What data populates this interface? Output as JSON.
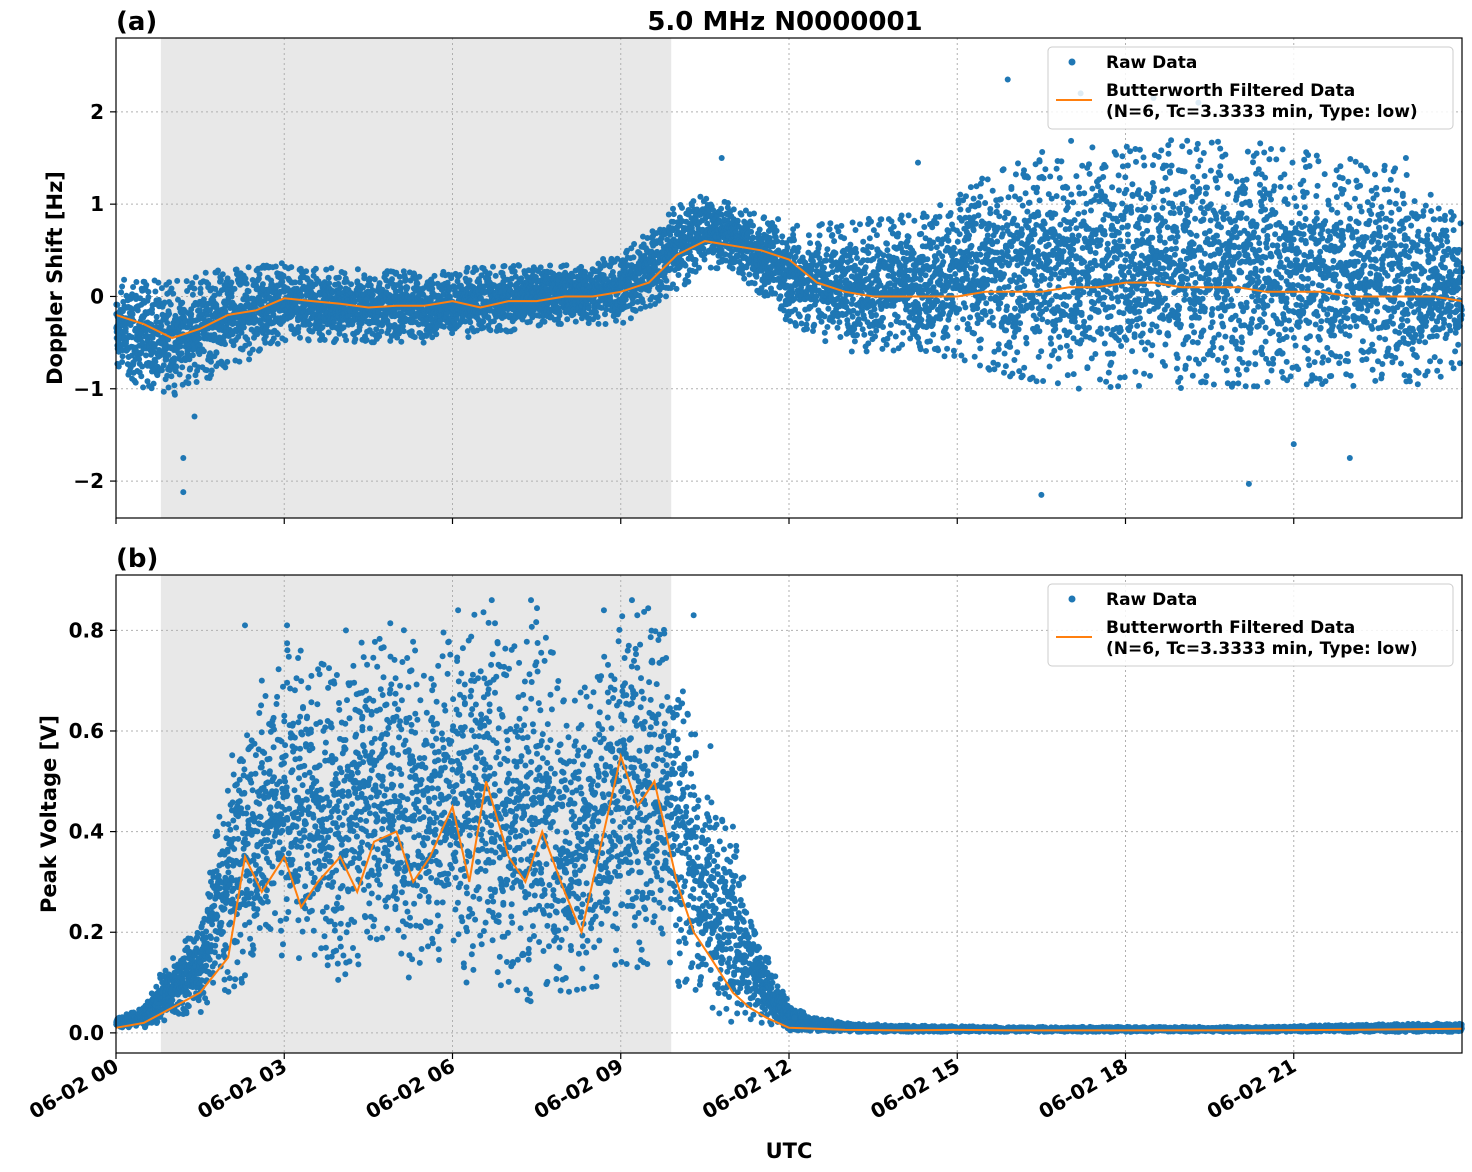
{
  "figure": {
    "title": "5.0 MHz N0000001",
    "xlabel": "UTC",
    "x_tick_labels": [
      "06-02 00",
      "06-02 03",
      "06-02 06",
      "06-02 09",
      "06-02 12",
      "06-02 15",
      "06-02 18",
      "06-02 21"
    ],
    "shaded_interval_hours": [
      0.8,
      9.9
    ],
    "colors": {
      "raw": "#1f77b4",
      "filtered": "#ff7f0e",
      "shade": "#e8e8e8"
    }
  },
  "chart_data": [
    {
      "type": "scatter",
      "panel_label": "(a)",
      "xlabel": "UTC",
      "ylabel": "Doppler Shift [Hz]",
      "xlim_hours": [
        0,
        24
      ],
      "ylim": [
        -2.4,
        2.8
      ],
      "y_ticks": [
        -2,
        -1,
        0,
        1,
        2
      ],
      "y_tick_labels": [
        "−2",
        "−1",
        "0",
        "1",
        "2"
      ],
      "grid": true,
      "legend_position": "top-right",
      "legend": {
        "raw": "Raw Data",
        "filtered_line1": "Butterworth Filtered Data",
        "filtered_line2": "(N=6, Tc=3.3333 min, Type: low)"
      },
      "series": [
        {
          "name": "Raw Data",
          "kind": "scatter",
          "envelope_x_hours": [
            0,
            1,
            2,
            3,
            4,
            5,
            6,
            7,
            8,
            9,
            9.9,
            10.5,
            11,
            12,
            13,
            14,
            15,
            16,
            17,
            18,
            19,
            20,
            21,
            22,
            23,
            24
          ],
          "envelope_low": [
            -0.9,
            -1.1,
            -0.8,
            -0.5,
            -0.5,
            -0.5,
            -0.5,
            -0.4,
            -0.3,
            -0.3,
            0.0,
            0.3,
            0.3,
            -0.3,
            -0.6,
            -0.6,
            -0.7,
            -0.9,
            -1.0,
            -1.0,
            -1.0,
            -1.0,
            -1.1,
            -1.0,
            -1.0,
            -0.8
          ],
          "envelope_high": [
            0.2,
            0.2,
            0.3,
            0.4,
            0.3,
            0.3,
            0.3,
            0.35,
            0.35,
            0.45,
            1.0,
            1.1,
            1.0,
            0.8,
            0.8,
            0.9,
            1.1,
            1.5,
            1.7,
            1.7,
            1.7,
            1.7,
            1.6,
            1.5,
            1.4,
            0.8
          ],
          "outliers": [
            [
              1.2,
              -2.12
            ],
            [
              1.2,
              -1.75
            ],
            [
              1.4,
              -1.3
            ],
            [
              10.8,
              1.5
            ],
            [
              14.3,
              1.45
            ],
            [
              15.9,
              2.35
            ],
            [
              16.5,
              -2.15
            ],
            [
              17.2,
              2.2
            ],
            [
              18.5,
              2.15
            ],
            [
              19.3,
              2.1
            ],
            [
              20.2,
              -2.03
            ],
            [
              21.0,
              -1.6
            ],
            [
              22.0,
              -1.75
            ],
            [
              23.0,
              1.5
            ]
          ]
        },
        {
          "name": "Butterworth Filtered Data (N=6, Tc=3.3333 min, Type: low)",
          "kind": "line",
          "x_hours": [
            0,
            0.5,
            1.0,
            1.5,
            2.0,
            2.5,
            3.0,
            3.5,
            4.0,
            4.5,
            5.0,
            5.5,
            6.0,
            6.5,
            7.0,
            7.5,
            8.0,
            8.5,
            9.0,
            9.5,
            10.0,
            10.5,
            11.0,
            11.5,
            12.0,
            12.5,
            13.0,
            13.5,
            14.0,
            14.5,
            15.0,
            15.5,
            16.0,
            16.5,
            17.0,
            17.5,
            18.0,
            18.5,
            19.0,
            19.5,
            20.0,
            20.5,
            21.0,
            21.5,
            22.0,
            22.5,
            23.0,
            23.5,
            24.0
          ],
          "y": [
            -0.2,
            -0.3,
            -0.45,
            -0.35,
            -0.2,
            -0.15,
            -0.02,
            -0.05,
            -0.08,
            -0.12,
            -0.1,
            -0.1,
            -0.05,
            -0.12,
            -0.05,
            -0.05,
            0.0,
            0.0,
            0.05,
            0.15,
            0.45,
            0.6,
            0.55,
            0.5,
            0.4,
            0.15,
            0.05,
            0.0,
            0.0,
            0.0,
            0.0,
            0.05,
            0.05,
            0.05,
            0.1,
            0.1,
            0.15,
            0.15,
            0.1,
            0.1,
            0.1,
            0.05,
            0.05,
            0.05,
            0.0,
            0.0,
            0.0,
            0.0,
            -0.05
          ]
        }
      ]
    },
    {
      "type": "scatter",
      "panel_label": "(b)",
      "xlabel": "UTC",
      "ylabel": "Peak Voltage [V]",
      "xlim_hours": [
        0,
        24
      ],
      "ylim": [
        -0.04,
        0.91
      ],
      "y_ticks": [
        0.0,
        0.2,
        0.4,
        0.6,
        0.8
      ],
      "y_tick_labels": [
        "0.0",
        "0.2",
        "0.4",
        "0.6",
        "0.8"
      ],
      "grid": true,
      "legend_position": "top-right",
      "legend": {
        "raw": "Raw Data",
        "filtered_line1": "Butterworth Filtered Data",
        "filtered_line2": "(N=6, Tc=3.3333 min, Type: low)"
      },
      "series": [
        {
          "name": "Raw Data",
          "kind": "scatter",
          "envelope_x_hours": [
            0,
            0.5,
            0.8,
            1.0,
            1.5,
            2.0,
            2.5,
            3.0,
            3.5,
            4.0,
            4.5,
            5.0,
            5.5,
            6.0,
            6.5,
            7.0,
            7.5,
            8.0,
            8.5,
            9.0,
            9.5,
            10.0,
            10.5,
            11.0,
            11.5,
            12.0,
            12.5,
            13.0,
            14.0,
            16.0,
            20.0,
            24.0
          ],
          "envelope_low": [
            0.01,
            0.01,
            0.02,
            0.03,
            0.04,
            0.08,
            0.12,
            0.15,
            0.12,
            0.1,
            0.15,
            0.1,
            0.12,
            0.1,
            0.08,
            0.08,
            0.05,
            0.07,
            0.08,
            0.12,
            0.12,
            0.08,
            0.05,
            0.02,
            0.02,
            0.005,
            0.003,
            0.002,
            0.002,
            0.002,
            0.002,
            0.002
          ],
          "envelope_high": [
            0.03,
            0.05,
            0.12,
            0.15,
            0.22,
            0.55,
            0.65,
            0.78,
            0.75,
            0.72,
            0.8,
            0.82,
            0.75,
            0.83,
            0.86,
            0.78,
            0.85,
            0.7,
            0.7,
            0.84,
            0.85,
            0.8,
            0.5,
            0.4,
            0.18,
            0.06,
            0.03,
            0.02,
            0.015,
            0.012,
            0.012,
            0.02
          ],
          "outliers": [
            [
              1.8,
              0.4
            ],
            [
              2.3,
              0.81
            ],
            [
              2.6,
              0.7
            ],
            [
              3.05,
              0.81
            ],
            [
              4.1,
              0.8
            ],
            [
              6.1,
              0.84
            ],
            [
              6.7,
              0.86
            ],
            [
              7.4,
              0.86
            ],
            [
              8.7,
              0.84
            ],
            [
              9.2,
              0.86
            ],
            [
              10.3,
              0.83
            ],
            [
              10.6,
              0.57
            ],
            [
              11.0,
              0.41
            ],
            [
              12.1,
              0.03
            ]
          ]
        },
        {
          "name": "Butterworth Filtered Data (N=6, Tc=3.3333 min, Type: low)",
          "kind": "line",
          "x_hours": [
            0,
            0.5,
            1.0,
            1.5,
            2.0,
            2.3,
            2.6,
            3.0,
            3.3,
            3.6,
            4.0,
            4.3,
            4.6,
            5.0,
            5.3,
            5.6,
            6.0,
            6.3,
            6.6,
            7.0,
            7.3,
            7.6,
            8.0,
            8.3,
            8.6,
            9.0,
            9.3,
            9.6,
            10.0,
            10.3,
            10.6,
            11.0,
            11.3,
            11.6,
            12.0,
            12.5,
            13.0,
            14.0,
            15.0,
            16.0,
            18.0,
            20.0,
            22.0,
            24.0
          ],
          "y": [
            0.01,
            0.02,
            0.05,
            0.08,
            0.15,
            0.35,
            0.28,
            0.35,
            0.25,
            0.3,
            0.35,
            0.28,
            0.38,
            0.4,
            0.3,
            0.35,
            0.45,
            0.3,
            0.5,
            0.35,
            0.3,
            0.4,
            0.28,
            0.2,
            0.35,
            0.55,
            0.45,
            0.5,
            0.3,
            0.2,
            0.15,
            0.08,
            0.05,
            0.03,
            0.01,
            0.008,
            0.006,
            0.005,
            0.006,
            0.005,
            0.005,
            0.005,
            0.006,
            0.008
          ]
        }
      ]
    }
  ]
}
